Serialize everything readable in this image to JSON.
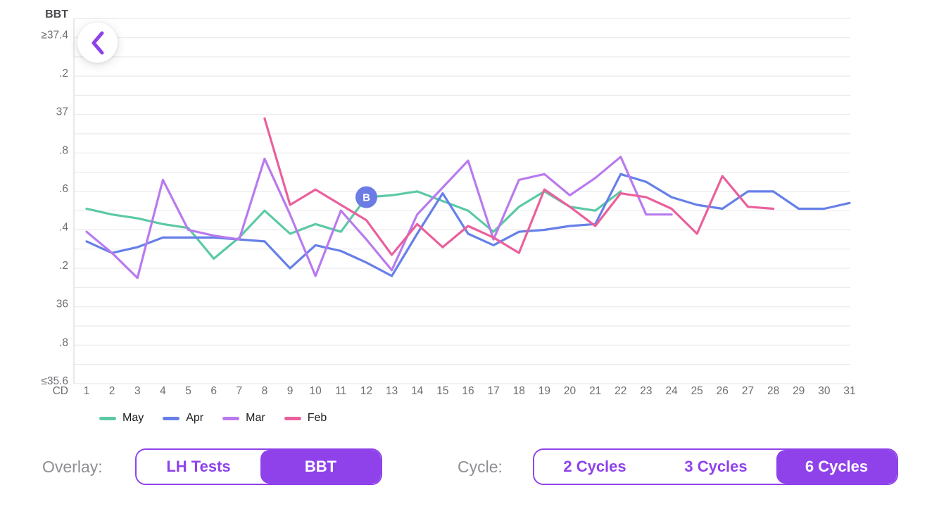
{
  "colors": {
    "accent": "#8f42ea",
    "grid": "#ebebee",
    "axis_line": "#d9d9de",
    "axis_text": "#6e6e73",
    "axis_title_text": "#4a4a4e",
    "legend_text": "#1d1d1f",
    "marker_fill": "#6b7ce4"
  },
  "back_button": {
    "icon": "chevron-left-icon"
  },
  "chart_data": {
    "type": "line",
    "y_axis_title": "BBT",
    "x_axis_label": "CD",
    "ylim": [
      35.6,
      37.5
    ],
    "grid_step": 0.1,
    "grid": true,
    "y_ticks": [
      {
        "value": 37.4,
        "label": "≥37.4"
      },
      {
        "value": 37.2,
        "label": ".2"
      },
      {
        "value": 37.0,
        "label": "37"
      },
      {
        "value": 36.8,
        "label": ".8"
      },
      {
        "value": 36.6,
        "label": ".6"
      },
      {
        "value": 36.4,
        "label": ".4"
      },
      {
        "value": 36.2,
        "label": ".2"
      },
      {
        "value": 36.0,
        "label": "36"
      },
      {
        "value": 35.8,
        "label": ".8"
      },
      {
        "value": 35.6,
        "label": "≤35.6"
      }
    ],
    "x_ticks": [
      "1",
      "2",
      "3",
      "4",
      "5",
      "6",
      "7",
      "8",
      "9",
      "10",
      "11",
      "12",
      "13",
      "14",
      "15",
      "16",
      "17",
      "18",
      "19",
      "20",
      "21",
      "22",
      "23",
      "24",
      "25",
      "26",
      "27",
      "28",
      "29",
      "30",
      "31"
    ],
    "series": [
      {
        "name": "May",
        "color": "#5cc9a6",
        "start_day": 1,
        "values": [
          36.51,
          36.48,
          36.46,
          36.43,
          36.41,
          36.25,
          36.36,
          36.5,
          36.38,
          36.43,
          36.39,
          36.57,
          36.58,
          36.6,
          36.55,
          36.5,
          36.39,
          36.52,
          36.6,
          36.52,
          36.5,
          36.6
        ]
      },
      {
        "name": "Apr",
        "color": "#6680e8",
        "start_day": 1,
        "values": [
          36.34,
          36.28,
          36.31,
          36.36,
          36.36,
          36.36,
          36.35,
          36.34,
          36.2,
          36.32,
          36.29,
          36.23,
          36.16,
          36.38,
          36.59,
          36.38,
          36.32,
          36.39,
          36.4,
          36.42,
          36.43,
          36.69,
          36.65,
          36.57,
          36.53,
          36.51,
          36.6,
          36.6,
          36.51,
          36.51,
          36.54
        ]
      },
      {
        "name": "Mar",
        "color": "#b97aee",
        "start_day": 1,
        "values": [
          36.39,
          36.28,
          36.15,
          36.66,
          36.4,
          36.37,
          36.35,
          36.77,
          36.48,
          36.16,
          36.5,
          36.35,
          36.19,
          36.48,
          36.62,
          36.76,
          36.35,
          36.66,
          36.69,
          36.58,
          36.67,
          36.78,
          36.48,
          36.48
        ]
      },
      {
        "name": "Feb",
        "color": "#ea609c",
        "start_day": 8,
        "values": [
          36.98,
          36.53,
          36.61,
          36.53,
          36.45,
          36.27,
          36.43,
          36.31,
          36.42,
          36.36,
          36.28,
          36.61,
          36.52,
          36.42,
          36.59,
          36.57,
          36.51,
          36.38,
          36.68,
          36.52,
          36.51
        ]
      }
    ],
    "marker": {
      "label": "B",
      "series": "May",
      "day": 12,
      "value": 36.57
    },
    "legend_position": "bottom-left"
  },
  "legend": {
    "items": [
      {
        "label": "May",
        "color": "#5cc9a6"
      },
      {
        "label": "Apr",
        "color": "#6680e8"
      },
      {
        "label": "Mar",
        "color": "#b97aee"
      },
      {
        "label": "Feb",
        "color": "#ea609c"
      }
    ]
  },
  "controls": {
    "overlay": {
      "label": "Overlay:",
      "options": [
        {
          "label": "LH Tests",
          "selected": false
        },
        {
          "label": "BBT",
          "selected": true
        }
      ]
    },
    "cycle": {
      "label": "Cycle:",
      "options": [
        {
          "label": "2 Cycles",
          "selected": false
        },
        {
          "label": "3 Cycles",
          "selected": false
        },
        {
          "label": "6 Cycles",
          "selected": true
        }
      ]
    }
  }
}
